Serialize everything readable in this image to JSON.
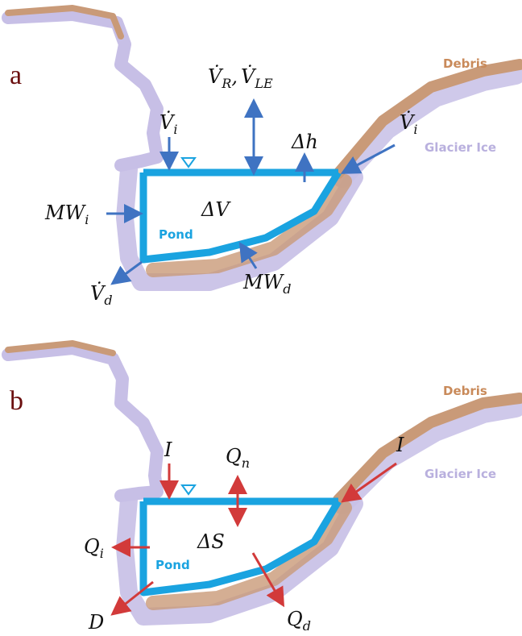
{
  "colors": {
    "ice": "#c7bfe6",
    "debris": "#c99a78",
    "pond": "#1aa3e0",
    "pond_edge": "#0f8fd6",
    "arrow_blue": "#3f73c2",
    "arrow_red": "#d23a3a",
    "panel_letter": "#6b0f0f",
    "debris_label": "#c98a5a",
    "ice_label": "#b9b0de"
  },
  "panels": [
    {
      "id": "a",
      "letter": "a",
      "labels": {
        "debris": "Debris",
        "glacier_ice": "Glacier Ice",
        "pond": "Pond",
        "inflow_left": "V̇",
        "inflow_left_sub": "i",
        "inflow_right": "V̇",
        "inflow_right_sub": "i",
        "runoff_evap_1": "V̇",
        "runoff_evap_1_sub": "R",
        "runoff_evap_sep": ",",
        "runoff_evap_2": "V̇",
        "runoff_evap_2_sub": "LE",
        "level_change": "Δh",
        "volume_change": "ΔV",
        "melt_ice": "MW",
        "melt_ice_sub": "i",
        "melt_debris": "MW",
        "melt_debris_sub": "d",
        "drainage": "V̇",
        "drainage_sub": "d"
      }
    },
    {
      "id": "b",
      "letter": "b",
      "labels": {
        "debris": "Debris",
        "glacier_ice": "Glacier Ice",
        "pond": "Pond",
        "inflow_left": "I",
        "inflow_right": "I",
        "net_flux": "Q",
        "net_flux_sub": "n",
        "storage_change": "ΔS",
        "heat_ice": "Q",
        "heat_ice_sub": "i",
        "heat_debris": "Q",
        "heat_debris_sub": "d",
        "drainage": "D"
      }
    }
  ],
  "icons": {
    "water_level": "inverted-triangle-icon"
  }
}
